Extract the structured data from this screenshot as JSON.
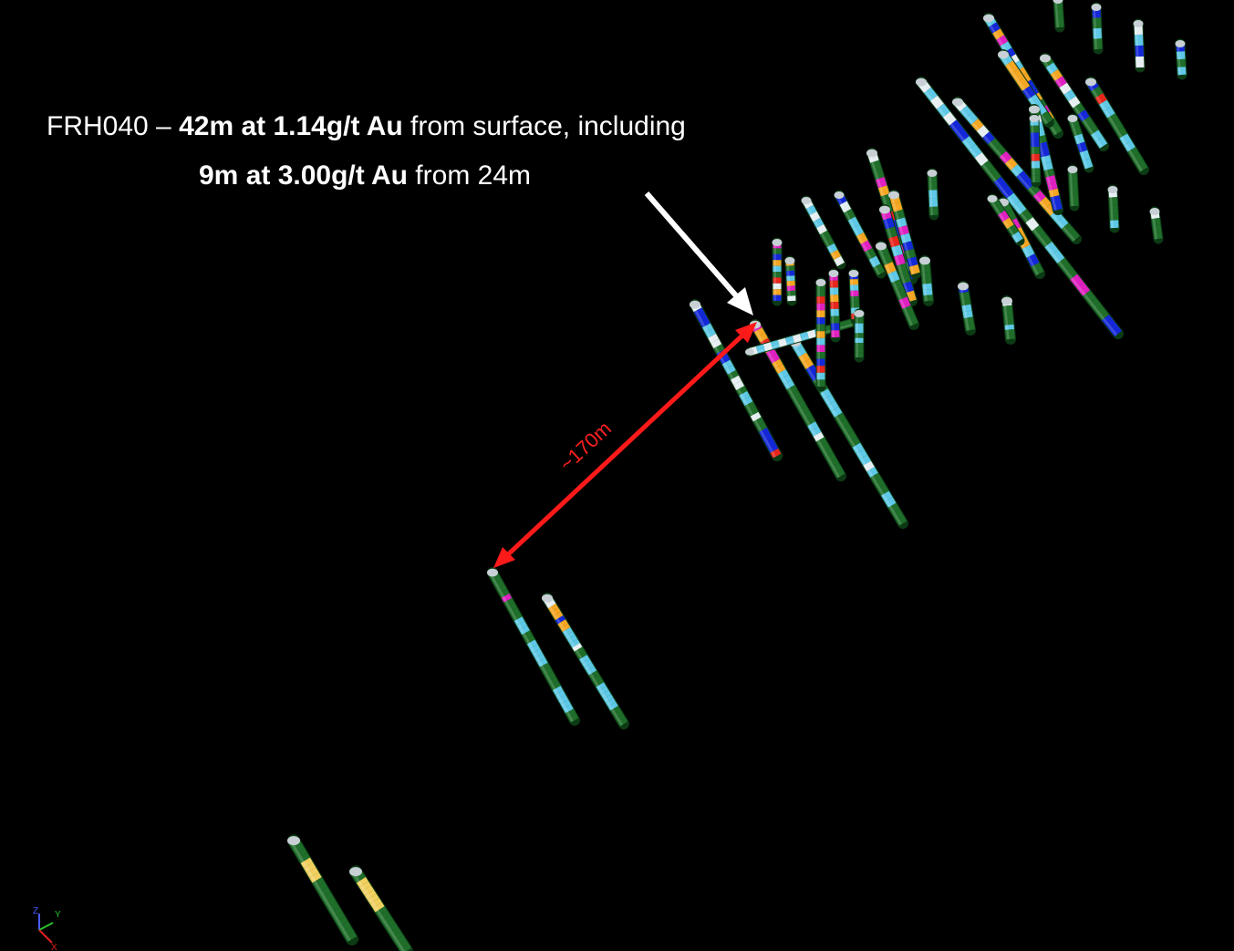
{
  "annotation": {
    "line1": {
      "prefix": "FRH040 – ",
      "bold": "42m at 1.14g/t Au",
      "suffix": " from surface, including"
    },
    "line2": {
      "bold": "9m at 3.00g/t Au",
      "suffix": " from 24m"
    },
    "distance_label": "~170m"
  },
  "axes_triad": {
    "z": "Z",
    "y": "Y",
    "x": "X"
  },
  "colors": {
    "background": "#000000",
    "casing": "#1f6e2a",
    "interval_light_blue": "#5ec8e6",
    "interval_orange": "#f5a623",
    "interval_magenta": "#e020c0",
    "interval_blue": "#1428d8",
    "interval_red": "#e8261c",
    "interval_white": "#e6eef2",
    "interval_yellow": "#f2d060",
    "arrow_white": "#ffffff",
    "arrow_red": "#ff1a1a"
  }
}
